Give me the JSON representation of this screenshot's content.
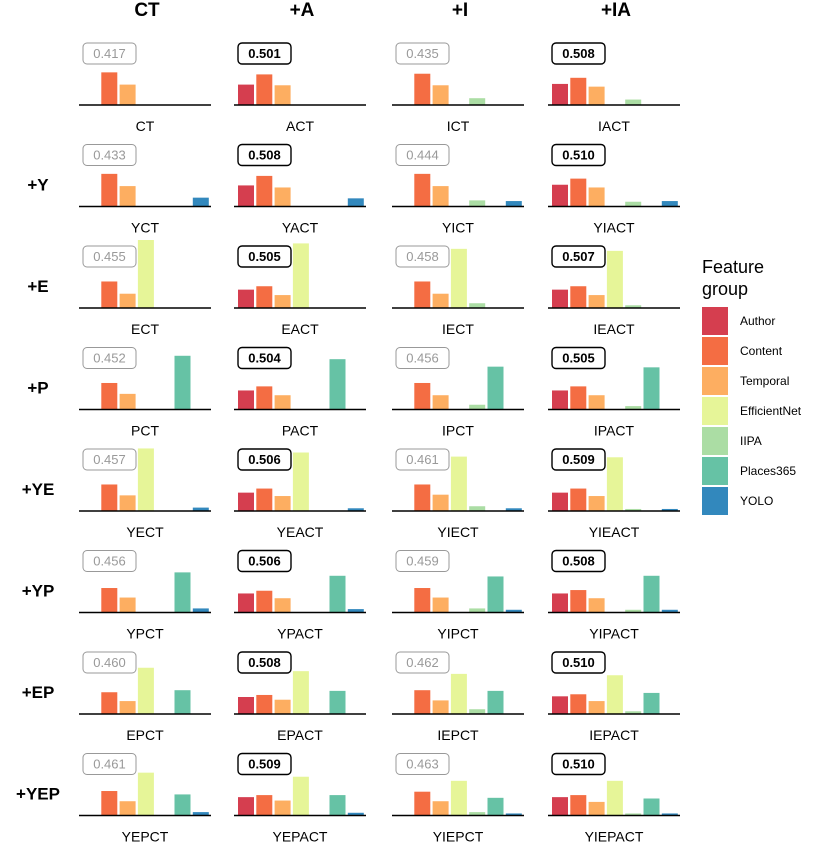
{
  "chart_data": {
    "type": "bar",
    "legend": {
      "title": "Feature\ngroup",
      "items": [
        "Author",
        "Content",
        "Temporal",
        "EfficientNet",
        "IIPA",
        "Places365",
        "YOLO"
      ],
      "colors": [
        "#d53e4f",
        "#f46d43",
        "#fdae61",
        "#e6f598",
        "#abdda4",
        "#66c2a5",
        "#3288bd"
      ]
    },
    "col_headers": [
      "CT",
      "+A",
      "+I",
      "+IA"
    ],
    "row_headers": [
      "",
      "+Y",
      "+E",
      "+P",
      "+YE",
      "+YP",
      "+EP",
      "+YEP"
    ],
    "ylim": [
      0,
      1
    ],
    "panels": [
      [
        {
          "label": "CT",
          "score": "0.417",
          "best": false,
          "values": [
            null,
            0.48,
            0.3,
            null,
            null,
            null,
            null
          ]
        },
        {
          "label": "ACT",
          "score": "0.501",
          "best": true,
          "values": [
            0.3,
            0.45,
            0.29,
            null,
            null,
            null,
            null
          ]
        },
        {
          "label": "ICT",
          "score": "0.435",
          "best": false,
          "values": [
            null,
            0.46,
            0.29,
            null,
            0.1,
            null,
            null
          ]
        },
        {
          "label": "IACT",
          "score": "0.508",
          "best": true,
          "values": [
            0.31,
            0.4,
            0.27,
            null,
            0.08,
            null,
            null
          ]
        }
      ],
      [
        {
          "label": "YCT",
          "score": "0.433",
          "best": false,
          "values": [
            null,
            0.48,
            0.3,
            null,
            null,
            null,
            0.13
          ]
        },
        {
          "label": "YACT",
          "score": "0.508",
          "best": true,
          "values": [
            0.31,
            0.45,
            0.28,
            null,
            null,
            null,
            0.12
          ]
        },
        {
          "label": "YICT",
          "score": "0.444",
          "best": false,
          "values": [
            null,
            0.48,
            0.3,
            null,
            0.09,
            null,
            0.08
          ]
        },
        {
          "label": "YIACT",
          "score": "0.510",
          "best": true,
          "values": [
            0.32,
            0.41,
            0.28,
            null,
            0.07,
            null,
            0.08
          ]
        }
      ],
      [
        {
          "label": "ECT",
          "score": "0.455",
          "best": false,
          "values": [
            null,
            0.39,
            0.21,
            1.0,
            null,
            null,
            null
          ]
        },
        {
          "label": "EACT",
          "score": "0.505",
          "best": true,
          "values": [
            0.27,
            0.32,
            0.19,
            0.95,
            null,
            null,
            null
          ]
        },
        {
          "label": "IECT",
          "score": "0.458",
          "best": false,
          "values": [
            null,
            0.39,
            0.21,
            0.87,
            0.07,
            null,
            null
          ]
        },
        {
          "label": "IEACT",
          "score": "0.507",
          "best": true,
          "values": [
            0.27,
            0.32,
            0.19,
            0.84,
            0.04,
            null,
            null
          ]
        }
      ],
      [
        {
          "label": "PCT",
          "score": "0.452",
          "best": false,
          "values": [
            null,
            0.39,
            0.23,
            null,
            null,
            0.79,
            null
          ]
        },
        {
          "label": "PACT",
          "score": "0.504",
          "best": true,
          "values": [
            0.28,
            0.34,
            0.21,
            null,
            null,
            0.74,
            null
          ]
        },
        {
          "label": "IPCT",
          "score": "0.456",
          "best": false,
          "values": [
            null,
            0.39,
            0.21,
            null,
            0.07,
            0.63,
            null
          ]
        },
        {
          "label": "IPACT",
          "score": "0.505",
          "best": true,
          "values": [
            0.28,
            0.34,
            0.21,
            null,
            0.05,
            0.62,
            null
          ]
        }
      ],
      [
        {
          "label": "YECT",
          "score": "0.457",
          "best": false,
          "values": [
            null,
            0.39,
            0.23,
            0.92,
            null,
            null,
            0.05
          ]
        },
        {
          "label": "YEACT",
          "score": "0.506",
          "best": true,
          "values": [
            0.27,
            0.33,
            0.22,
            0.86,
            null,
            null,
            0.04
          ]
        },
        {
          "label": "YIECT",
          "score": "0.461",
          "best": false,
          "values": [
            null,
            0.39,
            0.24,
            0.8,
            0.07,
            null,
            0.04
          ]
        },
        {
          "label": "YIEACT",
          "score": "0.509",
          "best": true,
          "values": [
            0.27,
            0.33,
            0.22,
            0.79,
            0.03,
            null,
            0.03
          ]
        }
      ],
      [
        {
          "label": "YPCT",
          "score": "0.456",
          "best": false,
          "values": [
            null,
            0.36,
            0.22,
            null,
            null,
            0.59,
            0.06
          ]
        },
        {
          "label": "YPACT",
          "score": "0.506",
          "best": true,
          "values": [
            0.28,
            0.32,
            0.21,
            null,
            null,
            0.54,
            0.05
          ]
        },
        {
          "label": "YIPCT",
          "score": "0.459",
          "best": false,
          "values": [
            null,
            0.36,
            0.22,
            null,
            0.06,
            0.53,
            0.04
          ]
        },
        {
          "label": "YIPACT",
          "score": "0.508",
          "best": true,
          "values": [
            0.28,
            0.33,
            0.21,
            null,
            0.04,
            0.54,
            0.04
          ]
        }
      ],
      [
        {
          "label": "EPCT",
          "score": "0.460",
          "best": false,
          "values": [
            null,
            0.32,
            0.19,
            0.68,
            null,
            0.35,
            null
          ]
        },
        {
          "label": "EPACT",
          "score": "0.508",
          "best": true,
          "values": [
            0.25,
            0.28,
            0.21,
            0.63,
            null,
            0.34,
            null
          ]
        },
        {
          "label": "IEPCT",
          "score": "0.462",
          "best": false,
          "values": [
            null,
            0.35,
            0.2,
            0.59,
            0.07,
            0.34,
            null
          ]
        },
        {
          "label": "IEPACT",
          "score": "0.510",
          "best": true,
          "values": [
            0.26,
            0.29,
            0.19,
            0.57,
            0.04,
            0.31,
            null
          ]
        }
      ],
      [
        {
          "label": "YEPCT",
          "score": "0.461",
          "best": false,
          "values": [
            null,
            0.36,
            0.21,
            0.63,
            null,
            0.31,
            0.05
          ]
        },
        {
          "label": "YEPACT",
          "score": "0.509",
          "best": true,
          "values": [
            0.27,
            0.3,
            0.22,
            0.57,
            null,
            0.3,
            0.04
          ]
        },
        {
          "label": "YIEPCT",
          "score": "0.463",
          "best": false,
          "values": [
            null,
            0.35,
            0.21,
            0.51,
            0.05,
            0.26,
            0.03
          ]
        },
        {
          "label": "YIEPACT",
          "score": "0.510",
          "best": true,
          "values": [
            0.27,
            0.3,
            0.2,
            0.51,
            0.03,
            0.25,
            0.03
          ]
        }
      ]
    ]
  }
}
